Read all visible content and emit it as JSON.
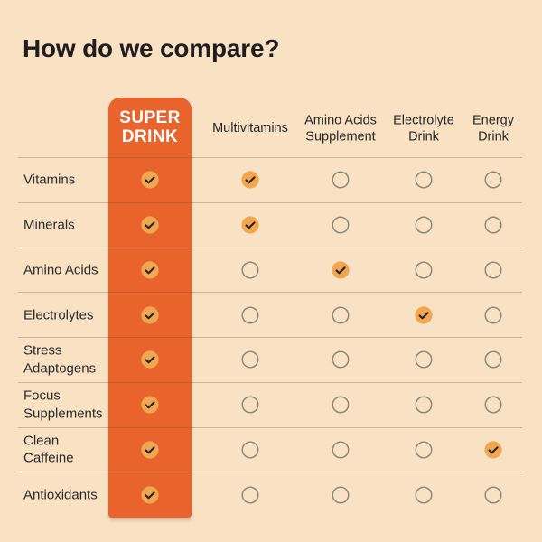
{
  "chart_data": {
    "type": "table",
    "title": "How do we compare?",
    "columns": [
      "SUPER DRINK",
      "Multivitamins",
      "Amino Acids Supplement",
      "Electrolyte Drink",
      "Energy Drink"
    ],
    "rows": [
      "Vitamins",
      "Minerals",
      "Amino Acids",
      "Electrolytes",
      "Stress Adaptogens",
      "Focus Supplements",
      "Clean Caffeine",
      "Antioxidants"
    ],
    "checks": [
      [
        true,
        true,
        false,
        false,
        false
      ],
      [
        true,
        true,
        false,
        false,
        false
      ],
      [
        true,
        false,
        true,
        false,
        false
      ],
      [
        true,
        false,
        false,
        true,
        false
      ],
      [
        true,
        false,
        false,
        false,
        false
      ],
      [
        true,
        false,
        false,
        false,
        false
      ],
      [
        true,
        false,
        false,
        false,
        true
      ],
      [
        true,
        false,
        false,
        false,
        false
      ]
    ]
  },
  "product_column": {
    "line1": "SUPER",
    "line2": "DRINK"
  },
  "icons": {
    "checked": "check-icon",
    "unchecked": "empty-circle-icon"
  },
  "colors": {
    "background": "#F9E2C4",
    "accent_orange": "#E8642C",
    "check_fill": "#F1A74F",
    "check_mark": "#2A2430",
    "empty_circle_outline": "#8D8774",
    "divider": "rgba(95,64,32,0.28)",
    "text": "#242424",
    "product_text": "#FFFFFF"
  }
}
